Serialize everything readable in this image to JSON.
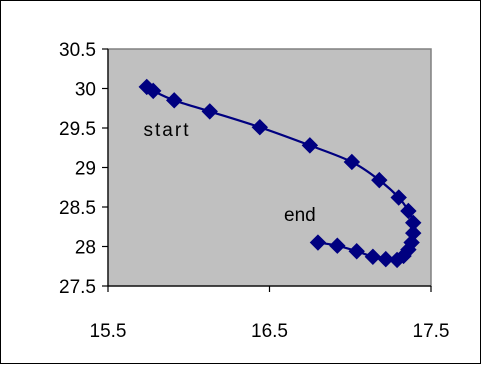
{
  "chart_data": {
    "type": "scatter",
    "title": "",
    "xlabel": "",
    "ylabel": "",
    "xlim": [
      15.5,
      17.5
    ],
    "ylim": [
      27.5,
      30.5
    ],
    "x_ticks": [
      "15.5",
      "16.5",
      "17.5"
    ],
    "y_ticks": [
      "27.5",
      "28",
      "28.5",
      "29",
      "29.5",
      "30",
      "30.5"
    ],
    "grid": false,
    "legend": "none",
    "plot_background": "#C0C0C0",
    "series_color": "#000080",
    "series": [
      {
        "points": [
          [
            15.74,
            30.02
          ],
          [
            15.78,
            29.97
          ],
          [
            15.91,
            29.85
          ],
          [
            16.13,
            29.71
          ],
          [
            16.44,
            29.51
          ],
          [
            16.75,
            29.28
          ],
          [
            17.01,
            29.07
          ],
          [
            17.18,
            28.84
          ],
          [
            17.3,
            28.62
          ],
          [
            17.36,
            28.45
          ],
          [
            17.39,
            28.3
          ],
          [
            17.39,
            28.17
          ],
          [
            17.38,
            28.05
          ],
          [
            17.36,
            27.96
          ],
          [
            17.33,
            27.88
          ],
          [
            17.29,
            27.83
          ],
          [
            17.22,
            27.84
          ],
          [
            17.14,
            27.87
          ],
          [
            17.04,
            27.94
          ],
          [
            16.92,
            28.01
          ],
          [
            16.8,
            28.05
          ]
        ]
      }
    ],
    "annotations": [
      {
        "text": "start",
        "x": 15.72,
        "y": 29.4
      },
      {
        "text": "end",
        "x": 16.59,
        "y": 28.32
      }
    ]
  }
}
